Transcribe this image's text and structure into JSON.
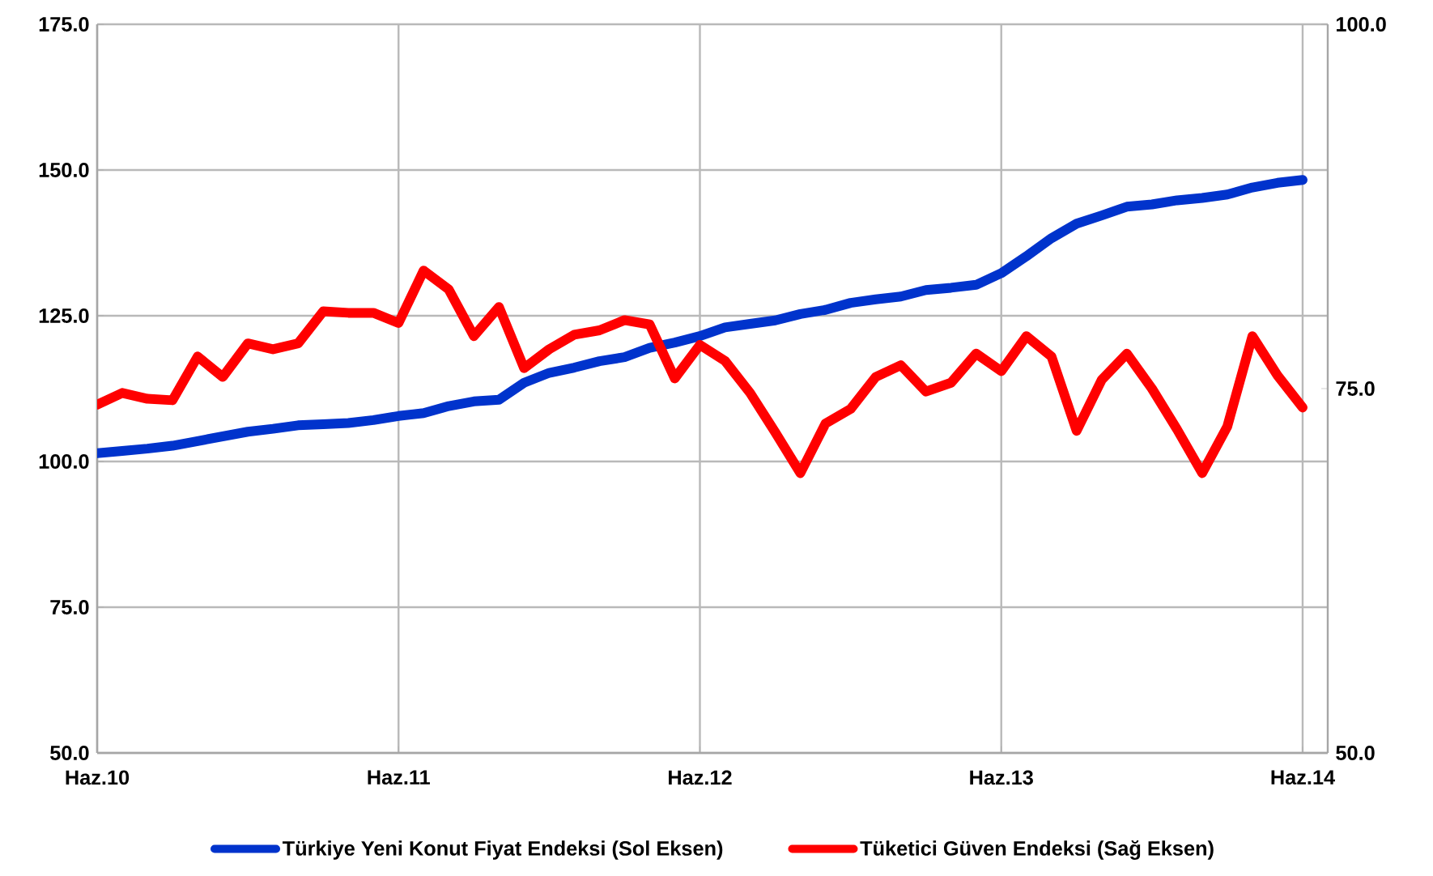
{
  "chart_data": {
    "type": "line",
    "x": [
      "2010-06",
      "2010-07",
      "2010-08",
      "2010-09",
      "2010-10",
      "2010-11",
      "2010-12",
      "2011-01",
      "2011-02",
      "2011-03",
      "2011-04",
      "2011-05",
      "2011-06",
      "2011-07",
      "2011-08",
      "2011-09",
      "2011-10",
      "2011-11",
      "2011-12",
      "2012-01",
      "2012-02",
      "2012-03",
      "2012-04",
      "2012-05",
      "2012-06",
      "2012-07",
      "2012-08",
      "2012-09",
      "2012-10",
      "2012-11",
      "2012-12",
      "2013-01",
      "2013-02",
      "2013-03",
      "2013-04",
      "2013-05",
      "2013-06",
      "2013-07",
      "2013-08",
      "2013-09",
      "2013-10",
      "2013-11",
      "2013-12",
      "2014-01",
      "2014-02",
      "2014-03",
      "2014-04",
      "2014-05",
      "2014-06"
    ],
    "series": [
      {
        "name": "Türkiye Yeni Konut Fiyat Endeksi (Sol Eksen)",
        "color": "#0033cc",
        "values": [
          101.4,
          101.8,
          102.2,
          102.7,
          103.5,
          104.3,
          105.1,
          105.6,
          106.2,
          106.4,
          106.6,
          107.1,
          107.8,
          108.3,
          109.5,
          110.3,
          110.6,
          113.5,
          115.2,
          116.1,
          117.2,
          117.9,
          119.5,
          120.4,
          121.5,
          123.0,
          123.6,
          124.2,
          125.3,
          126.0,
          127.2,
          127.8,
          128.3,
          129.4,
          129.8,
          130.3,
          132.3,
          135.2,
          138.3,
          140.8,
          142.2,
          143.7,
          144.1,
          144.8,
          145.2,
          145.8,
          147.0,
          147.8,
          148.3
        ]
      },
      {
        "name": "Tüketici Güven Endeksi (Sağ Eksen)",
        "color": "#ff0000",
        "axis": "y2",
        "values": [
          73.9,
          74.7,
          74.3,
          74.2,
          77.2,
          75.8,
          78.1,
          77.7,
          78.1,
          80.3,
          80.2,
          80.2,
          79.5,
          83.1,
          81.8,
          78.6,
          80.6,
          76.4,
          77.7,
          78.7,
          79.0,
          79.7,
          79.4,
          75.7,
          78.0,
          76.9,
          74.7,
          72.0,
          69.2,
          72.6,
          73.6,
          75.8,
          76.6,
          74.8,
          75.4,
          77.4,
          76.2,
          78.6,
          77.2,
          72.1,
          75.6,
          77.4,
          75.0,
          72.2,
          69.2,
          72.4,
          78.6,
          75.9,
          73.7
        ]
      }
    ],
    "xlim": [
      "2010-06",
      "2014-07"
    ],
    "xticks": [
      {
        "value": "2010-06",
        "label": "Haz.10"
      },
      {
        "value": "2011-06",
        "label": "Haz.11"
      },
      {
        "value": "2012-06",
        "label": "Haz.12"
      },
      {
        "value": "2013-06",
        "label": "Haz.13"
      },
      {
        "value": "2014-06",
        "label": "Haz.14"
      }
    ],
    "ylim": [
      50,
      175
    ],
    "yticks": [
      {
        "value": 50,
        "label": "50.0"
      },
      {
        "value": 75,
        "label": "75.0"
      },
      {
        "value": 100,
        "label": "100.0"
      },
      {
        "value": 125,
        "label": "125.0"
      },
      {
        "value": 150,
        "label": "150.0"
      },
      {
        "value": 175,
        "label": "175.0"
      }
    ],
    "y2lim": [
      50,
      100
    ],
    "y2ticks": [
      {
        "value": 50,
        "label": "50.0"
      },
      {
        "value": 75,
        "label": "75.0"
      },
      {
        "value": 100,
        "label": "100.0"
      }
    ],
    "grid": true,
    "legend": "bottom",
    "marker": "none",
    "line_style": "solid"
  }
}
